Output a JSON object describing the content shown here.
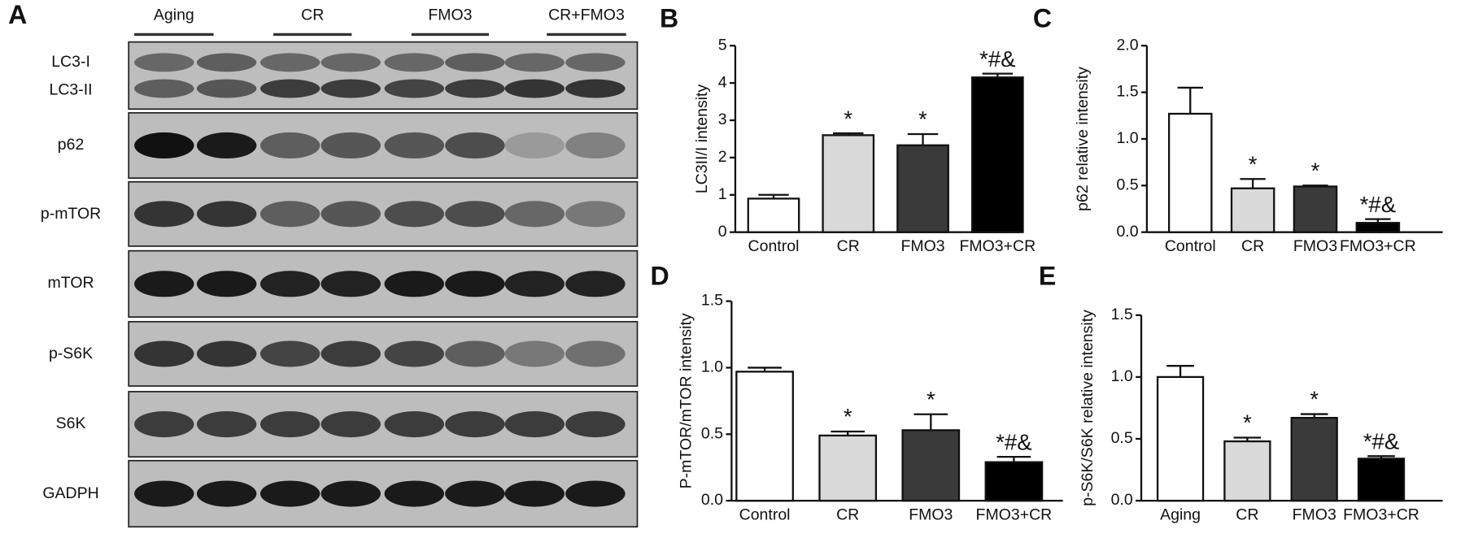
{
  "panel_letters": [
    "A",
    "B",
    "C",
    "D",
    "E"
  ],
  "blot": {
    "groups": [
      "Aging",
      "CR",
      "FMO3",
      "CR+FMO3"
    ],
    "rows": [
      "LC3-I",
      "LC3-II",
      "p62",
      "p-mTOR",
      "mTOR",
      "p-S6K",
      "S6K",
      "GADPH"
    ]
  },
  "chart_data": [
    {
      "type": "bar",
      "ylabel": "LC3II/I intensity",
      "categories": [
        "Control",
        "CR",
        "FMO3",
        "FMO3+CR"
      ],
      "values": [
        0.9,
        2.6,
        2.33,
        4.15
      ],
      "errors": [
        0.1,
        0.05,
        0.3,
        0.1
      ],
      "colors": [
        "#ffffff",
        "#d9d9d9",
        "#3a3a3a",
        "#000000"
      ],
      "annotations": [
        null,
        "*",
        "*",
        "*#&"
      ],
      "ylim": [
        0,
        5
      ],
      "yticks": [
        0,
        1,
        2,
        3,
        4,
        5
      ]
    },
    {
      "type": "bar",
      "ylabel": "p62 relative intensity",
      "categories": [
        "Control",
        "CR",
        "FMO3",
        "FMO3+CR"
      ],
      "values": [
        1.27,
        0.47,
        0.49,
        0.1
      ],
      "errors": [
        0.28,
        0.1,
        0.01,
        0.04
      ],
      "colors": [
        "#ffffff",
        "#d9d9d9",
        "#3a3a3a",
        "#000000"
      ],
      "annotations": [
        null,
        "*",
        "*",
        "*#&"
      ],
      "ylim": [
        0,
        2
      ],
      "yticks": [
        {
          "value": 0,
          "label": "0.0"
        },
        {
          "value": 0.5,
          "label": "0.5"
        },
        {
          "value": 1,
          "label": "1.0"
        },
        {
          "value": 1.5,
          "label": "1.5"
        },
        {
          "value": 2,
          "label": "2.0"
        }
      ]
    },
    {
      "type": "bar",
      "ylabel": "P-mTOR/mTOR intensity",
      "categories": [
        "Control",
        "CR",
        "FMO3",
        "FMO3+CR"
      ],
      "values": [
        0.97,
        0.49,
        0.53,
        0.29
      ],
      "errors": [
        0.03,
        0.03,
        0.12,
        0.04
      ],
      "colors": [
        "#ffffff",
        "#d9d9d9",
        "#3a3a3a",
        "#000000"
      ],
      "annotations": [
        null,
        "*",
        "*",
        "*#&"
      ],
      "ylim": [
        0,
        1.5
      ],
      "yticks": [
        {
          "value": 0,
          "label": "0.0"
        },
        {
          "value": 0.5,
          "label": "0.5"
        },
        {
          "value": 1,
          "label": "1.0"
        },
        {
          "value": 1.5,
          "label": "1.5"
        }
      ]
    },
    {
      "type": "bar",
      "ylabel": "p-S6K/S6K relative intensity",
      "categories": [
        "Aging",
        "CR",
        "FMO3",
        "FMO3+CR"
      ],
      "values": [
        1.0,
        0.48,
        0.67,
        0.34
      ],
      "errors": [
        0.09,
        0.03,
        0.03,
        0.02
      ],
      "colors": [
        "#ffffff",
        "#d9d9d9",
        "#3a3a3a",
        "#000000"
      ],
      "annotations": [
        null,
        "*",
        "*",
        "*#&"
      ],
      "ylim": [
        0,
        1.5
      ],
      "yticks": [
        {
          "value": 0,
          "label": "0.0"
        },
        {
          "value": 0.5,
          "label": "0.5"
        },
        {
          "value": 1,
          "label": "1.0"
        },
        {
          "value": 1.5,
          "label": "1.5"
        }
      ]
    }
  ]
}
